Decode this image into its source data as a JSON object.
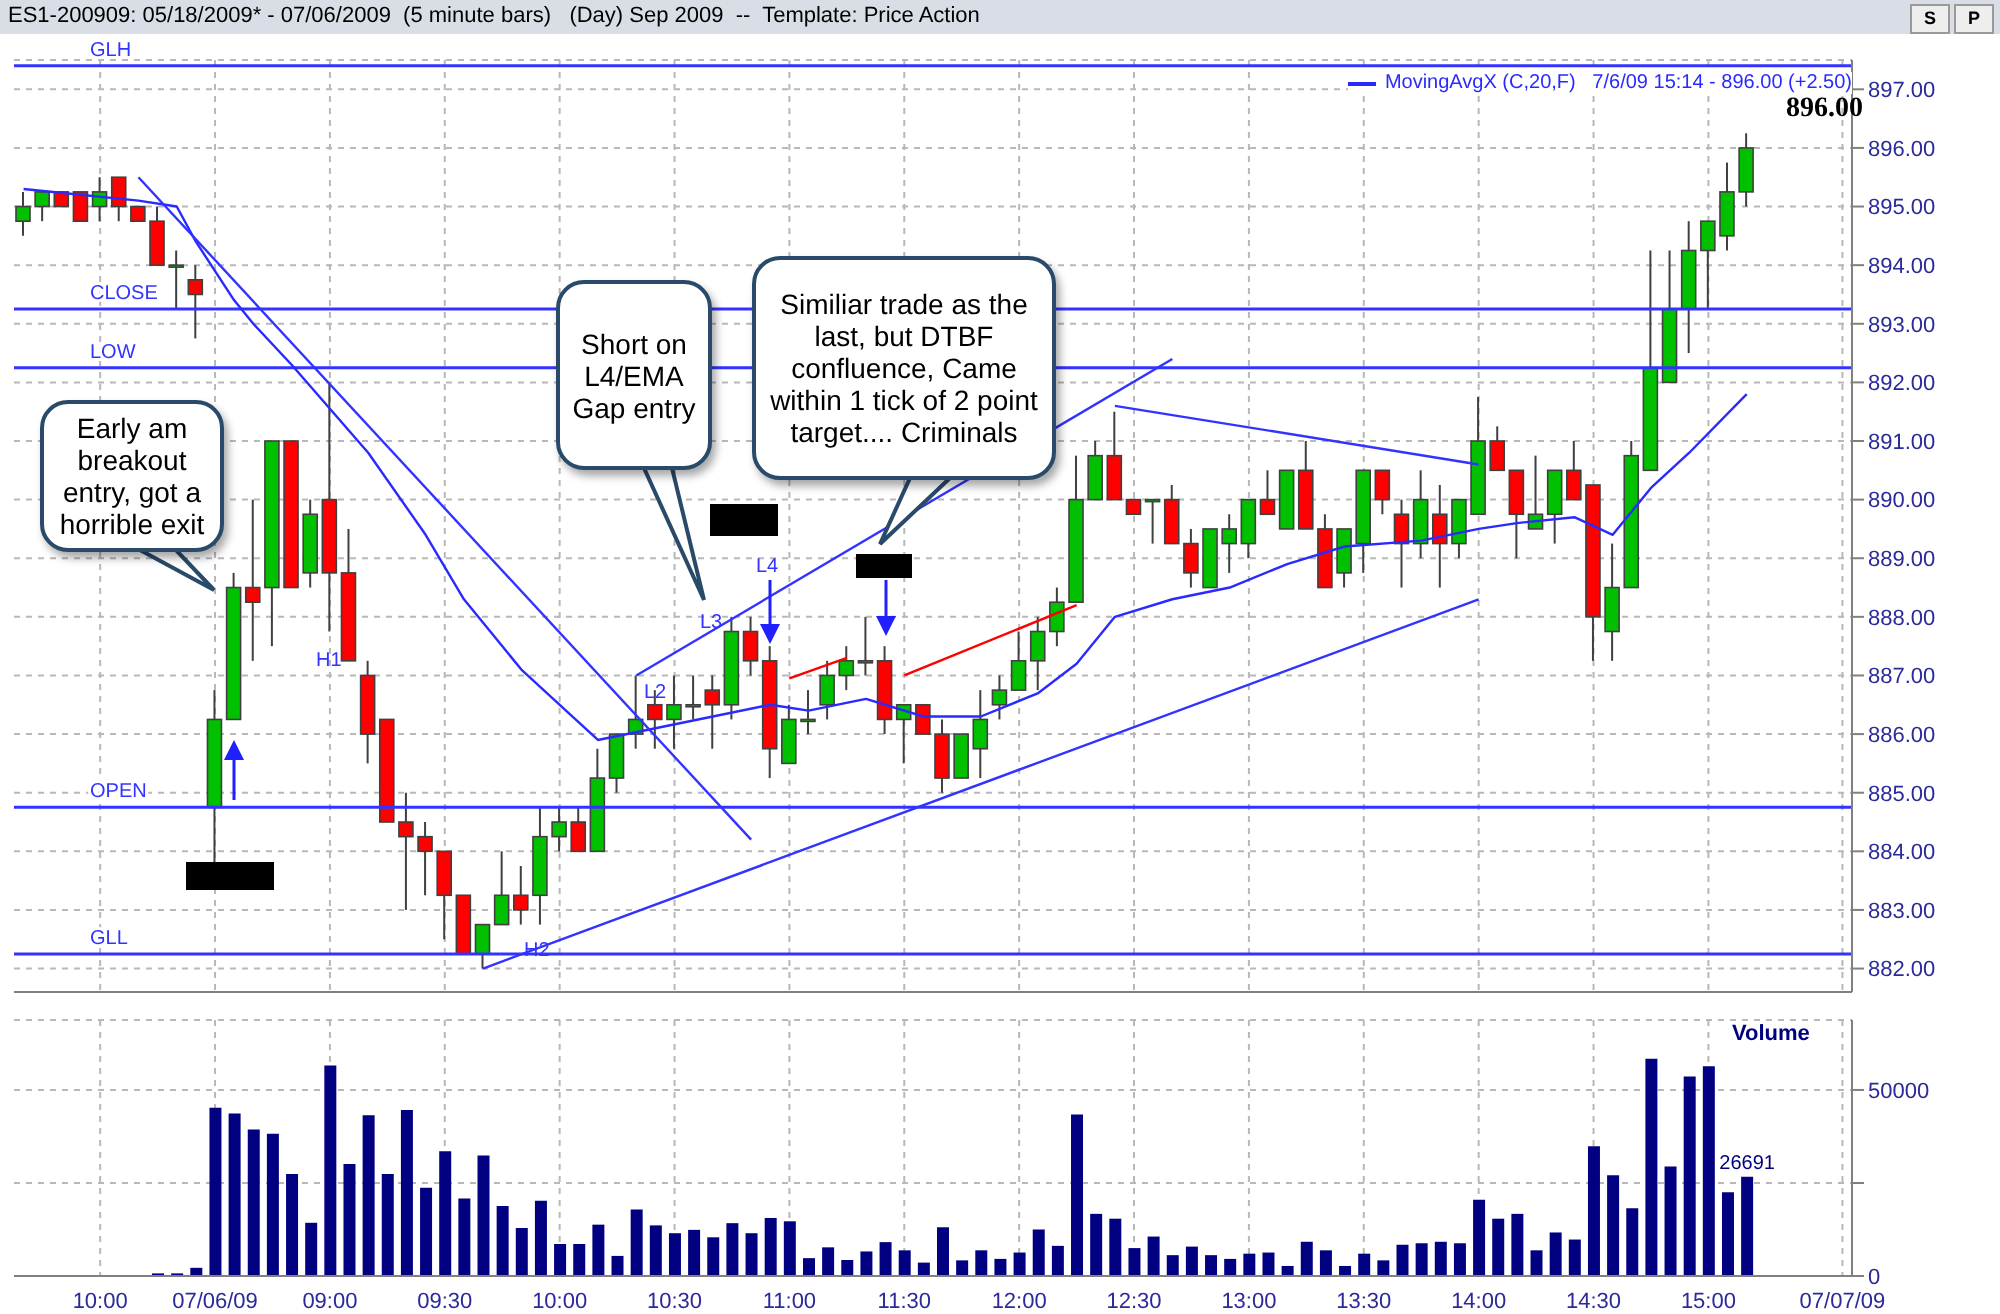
{
  "chart_data": [
    {
      "type": "candlestick",
      "title": "ES1-200909: 05/18/2009* - 07/06/2009  (5 minute bars)   (Day) Sep 2009  --  Template: Price Action",
      "categories": [
        null,
        null,
        null,
        null,
        null,
        null,
        null,
        null,
        null,
        null,
        null,
        null,
        null,
        null,
        null,
        null,
        null,
        null,
        null,
        null,
        null,
        null,
        null,
        null,
        null,
        null,
        null,
        null,
        null,
        null,
        null,
        null,
        null,
        null,
        null,
        null,
        null,
        null,
        null,
        null,
        null,
        null,
        null,
        null,
        null,
        null,
        null,
        null,
        null,
        null,
        null,
        null,
        null,
        null,
        null,
        null,
        null,
        null,
        null,
        null,
        null,
        null,
        null,
        null,
        null,
        null,
        null,
        null,
        null,
        null,
        null,
        null,
        null,
        null,
        null,
        null,
        null,
        null,
        null,
        null,
        null,
        null,
        null,
        null,
        null,
        null,
        null,
        null,
        null,
        null,
        null,
        null,
        null,
        null,
        null,
        null
      ],
      "ohlc": [
        [
          894.75,
          895.25,
          894.5,
          895.0
        ],
        [
          895.0,
          895.25,
          894.75,
          895.25
        ],
        [
          895.25,
          895.25,
          895.0,
          895.0
        ],
        [
          895.25,
          895.25,
          894.75,
          894.75
        ],
        [
          895.0,
          895.5,
          894.75,
          895.25
        ],
        [
          895.5,
          895.5,
          894.75,
          895.0
        ],
        [
          895.0,
          895.0,
          894.75,
          894.75
        ],
        [
          894.75,
          895.0,
          894.0,
          894.0
        ],
        [
          894.0,
          894.25,
          893.25,
          894.0
        ],
        [
          893.75,
          894.0,
          892.75,
          893.5
        ],
        [
          884.75,
          886.75,
          883.75,
          886.25
        ],
        [
          886.25,
          888.75,
          886.25,
          888.5
        ],
        [
          888.5,
          890.0,
          887.25,
          888.25
        ],
        [
          888.5,
          891.0,
          887.5,
          891.0
        ],
        [
          891.0,
          891.0,
          888.5,
          888.5
        ],
        [
          888.75,
          890.0,
          888.5,
          889.75
        ],
        [
          890.0,
          892.0,
          887.75,
          888.75
        ],
        [
          888.75,
          889.5,
          887.25,
          887.25
        ],
        [
          887.0,
          887.25,
          885.5,
          886.0
        ],
        [
          886.25,
          886.25,
          884.5,
          884.5
        ],
        [
          884.5,
          885.0,
          883.0,
          884.25
        ],
        [
          884.25,
          884.5,
          883.25,
          884.0
        ],
        [
          884.0,
          884.0,
          882.5,
          883.25
        ],
        [
          883.25,
          883.25,
          882.25,
          882.25
        ],
        [
          882.25,
          882.75,
          882.0,
          882.75
        ],
        [
          882.75,
          884.0,
          882.75,
          883.25
        ],
        [
          883.25,
          883.75,
          882.75,
          883.0
        ],
        [
          883.25,
          884.75,
          882.75,
          884.25
        ],
        [
          884.25,
          884.75,
          884.0,
          884.5
        ],
        [
          884.5,
          884.75,
          884.0,
          884.0
        ],
        [
          884.0,
          885.75,
          884.0,
          885.25
        ],
        [
          885.25,
          886.0,
          885.0,
          886.0
        ],
        [
          886.0,
          887.0,
          885.75,
          886.25
        ],
        [
          886.5,
          886.75,
          885.75,
          886.25
        ],
        [
          886.25,
          887.0,
          885.75,
          886.5
        ],
        [
          886.5,
          887.0,
          886.25,
          886.5
        ],
        [
          886.75,
          887.0,
          885.75,
          886.5
        ],
        [
          886.5,
          888.0,
          886.25,
          887.75
        ],
        [
          887.75,
          888.0,
          887.0,
          887.25
        ],
        [
          887.25,
          887.5,
          885.25,
          885.75
        ],
        [
          885.5,
          886.5,
          885.5,
          886.25
        ],
        [
          886.25,
          886.75,
          886.0,
          886.25
        ],
        [
          886.5,
          887.25,
          886.25,
          887.0
        ],
        [
          887.0,
          887.5,
          886.75,
          887.25
        ],
        [
          887.25,
          888.0,
          887.0,
          887.25
        ],
        [
          887.25,
          887.5,
          886.0,
          886.25
        ],
        [
          886.25,
          886.5,
          885.5,
          886.5
        ],
        [
          886.5,
          886.5,
          886.0,
          886.0
        ],
        [
          886.0,
          886.25,
          885.0,
          885.25
        ],
        [
          885.25,
          886.0,
          885.25,
          886.0
        ],
        [
          885.75,
          886.75,
          885.25,
          886.25
        ],
        [
          886.5,
          887.0,
          886.25,
          886.75
        ],
        [
          886.75,
          887.75,
          886.75,
          887.25
        ],
        [
          887.25,
          888.0,
          886.75,
          887.75
        ],
        [
          887.75,
          888.5,
          887.5,
          888.25
        ],
        [
          888.25,
          890.75,
          888.25,
          890.0
        ],
        [
          890.0,
          891.0,
          890.0,
          890.75
        ],
        [
          890.75,
          891.5,
          890.0,
          890.0
        ],
        [
          890.0,
          890.0,
          889.75,
          889.75
        ],
        [
          890.0,
          890.0,
          889.25,
          890.0
        ],
        [
          890.0,
          890.25,
          889.25,
          889.25
        ],
        [
          889.25,
          889.5,
          888.5,
          888.75
        ],
        [
          888.5,
          889.5,
          888.5,
          889.5
        ],
        [
          889.25,
          889.75,
          888.75,
          889.5
        ],
        [
          889.25,
          890.0,
          889.0,
          890.0
        ],
        [
          890.0,
          890.5,
          889.75,
          889.75
        ],
        [
          889.5,
          890.5,
          889.5,
          890.5
        ],
        [
          890.5,
          891.0,
          889.5,
          889.5
        ],
        [
          889.5,
          889.75,
          888.5,
          888.5
        ],
        [
          888.75,
          889.5,
          888.5,
          889.5
        ],
        [
          889.25,
          890.5,
          888.75,
          890.5
        ],
        [
          890.5,
          890.5,
          889.75,
          890.0
        ],
        [
          889.75,
          890.0,
          888.5,
          889.25
        ],
        [
          889.25,
          890.5,
          889.0,
          890.0
        ],
        [
          889.75,
          890.25,
          888.5,
          889.25
        ],
        [
          889.25,
          890.0,
          889.0,
          890.0
        ],
        [
          889.75,
          891.75,
          889.75,
          891.0
        ],
        [
          891.0,
          891.25,
          890.5,
          890.5
        ],
        [
          890.5,
          890.5,
          889.0,
          889.75
        ],
        [
          889.5,
          890.75,
          889.5,
          889.75
        ],
        [
          889.75,
          890.5,
          889.25,
          890.5
        ],
        [
          890.5,
          891.0,
          890.0,
          890.0
        ],
        [
          890.25,
          890.25,
          887.25,
          888.0
        ],
        [
          887.75,
          889.25,
          887.25,
          888.5
        ],
        [
          888.5,
          891.0,
          888.5,
          890.75
        ],
        [
          890.5,
          894.25,
          890.5,
          892.25
        ],
        [
          892.0,
          894.25,
          892.0,
          893.25
        ],
        [
          893.25,
          894.75,
          892.5,
          894.25
        ],
        [
          894.25,
          894.75,
          893.25,
          894.75
        ],
        [
          894.5,
          895.75,
          894.25,
          895.25
        ],
        [
          895.25,
          896.25,
          895.0,
          896.0
        ],
        null,
        null,
        null,
        null,
        null
      ],
      "colors": [
        "#00c000",
        "#00c000",
        "#ff0000",
        "#ff0000",
        "#00c000",
        "#ff0000",
        "#ff0000",
        "#ff0000",
        "#00c000",
        "#ff0000",
        "#00c000",
        "#00c000",
        "#ff0000",
        "#00c000",
        "#ff0000",
        "#00c000",
        "#ff0000",
        "#ff0000",
        "#ff0000",
        "#ff0000",
        "#ff0000",
        "#ff0000",
        "#ff0000",
        "#ff0000",
        "#00c000",
        "#00c000",
        "#ff0000",
        "#00c000",
        "#00c000",
        "#ff0000",
        "#00c000",
        "#00c000",
        "#00c000",
        "#ff0000",
        "#00c000",
        "#00c000",
        "#ff0000",
        "#00c000",
        "#ff0000",
        "#ff0000",
        "#00c000",
        "#00c000",
        "#00c000",
        "#00c000",
        "#00c000",
        "#ff0000",
        "#00c000",
        "#ff0000",
        "#ff0000",
        "#00c000",
        "#00c000",
        "#00c000",
        "#00c000",
        "#00c000",
        "#00c000",
        "#00c000",
        "#00c000",
        "#ff0000",
        "#ff0000",
        "#00c000",
        "#ff0000",
        "#ff0000",
        "#00c000",
        "#00c000",
        "#00c000",
        "#ff0000",
        "#00c000",
        "#ff0000",
        "#ff0000",
        "#00c000",
        "#00c000",
        "#ff0000",
        "#ff0000",
        "#00c000",
        "#ff0000",
        "#00c000",
        "#00c000",
        "#ff0000",
        "#ff0000",
        "#00c000",
        "#00c000",
        "#ff0000",
        "#ff0000",
        "#00c000",
        "#00c000",
        "#00c000",
        "#00c000",
        "#00c000",
        "#00c000",
        "#00c000",
        "#00c000",
        null,
        null,
        null,
        null,
        null
      ],
      "series": [
        {
          "type": "line",
          "name": "MovingAvgX (C,20,F)   7/6/09 15:14 - 896.00 (+2.50)",
          "color": "#2a2aff",
          "values": [
            895.3,
            null,
            null,
            null,
            null,
            null,
            895.1,
            null,
            895.0,
            894.4,
            null,
            893.4,
            893.0,
            null,
            892.3,
            null,
            null,
            null,
            890.8,
            null,
            null,
            889.4,
            null,
            888.3,
            null,
            null,
            887.1,
            null,
            null,
            886.2,
            885.9,
            null,
            null,
            886.1,
            null,
            null,
            886.3,
            null,
            null,
            886.5,
            null,
            886.4,
            null,
            null,
            886.6,
            null,
            null,
            886.3,
            null,
            null,
            886.3,
            null,
            null,
            886.7,
            null,
            887.2,
            null,
            888.0,
            null,
            null,
            888.3,
            null,
            null,
            888.5,
            null,
            null,
            888.9,
            null,
            null,
            889.2,
            null,
            null,
            null,
            889.3,
            null,
            null,
            889.5,
            null,
            889.6,
            null,
            null,
            889.7,
            null,
            889.4,
            null,
            890.2,
            null,
            890.8,
            null,
            null,
            891.8,
            null,
            null,
            null,
            null,
            null
          ]
        },
        {
          "type": "line",
          "color": "#3333ff",
          "values": [
            null,
            null,
            null,
            null,
            null,
            null,
            null,
            null,
            null,
            null,
            null,
            null,
            null,
            null,
            null,
            null,
            null,
            null,
            null,
            null,
            null,
            null,
            null,
            null,
            882.0,
            null,
            null,
            null,
            null,
            null,
            null,
            null,
            null,
            null,
            null,
            null,
            null,
            null,
            null,
            null,
            null,
            null,
            null,
            null,
            null,
            null,
            null,
            null,
            null,
            null,
            null,
            null,
            null,
            null,
            null,
            null,
            null,
            null,
            null,
            null,
            null,
            null,
            null,
            null,
            null,
            null,
            null,
            null,
            null,
            null,
            null,
            null,
            null,
            null,
            null,
            null,
            888.3,
            null,
            null,
            null,
            null,
            null,
            null,
            null,
            null,
            null,
            null,
            null,
            null,
            null,
            null,
            null,
            null,
            null,
            null,
            null
          ]
        },
        {
          "type": "line",
          "color": "#3333ff",
          "values": [
            null,
            null,
            null,
            null,
            null,
            null,
            null,
            null,
            null,
            null,
            null,
            null,
            null,
            null,
            null,
            null,
            null,
            null,
            null,
            null,
            null,
            null,
            null,
            null,
            null,
            null,
            null,
            null,
            null,
            null,
            null,
            null,
            887.0,
            null,
            null,
            null,
            null,
            null,
            null,
            null,
            null,
            null,
            null,
            null,
            null,
            null,
            null,
            null,
            null,
            null,
            null,
            null,
            null,
            null,
            null,
            null,
            null,
            null,
            null,
            null,
            892.4,
            null,
            null,
            null,
            null,
            null,
            null,
            null,
            null,
            null,
            null,
            null,
            null,
            null,
            null,
            null,
            null,
            null,
            null,
            null,
            null,
            null,
            null,
            null,
            null,
            null,
            null,
            null,
            null,
            null,
            null,
            null,
            null,
            null,
            null,
            null
          ]
        },
        {
          "type": "line",
          "color": "#3333ff",
          "values": [
            null,
            null,
            null,
            null,
            null,
            null,
            895.5,
            null,
            null,
            null,
            null,
            null,
            null,
            null,
            null,
            null,
            null,
            null,
            null,
            null,
            null,
            null,
            null,
            null,
            null,
            null,
            null,
            null,
            null,
            null,
            null,
            null,
            null,
            null,
            null,
            null,
            null,
            null,
            884.2,
            null,
            null,
            null,
            null,
            null,
            null,
            null,
            null,
            null,
            null,
            null,
            null,
            null,
            null,
            null,
            null,
            null,
            null,
            null,
            null,
            null,
            null,
            null,
            null,
            null,
            null,
            null,
            null,
            null,
            null,
            null,
            null,
            null,
            null,
            null,
            null,
            null,
            null,
            null,
            null,
            null,
            null,
            null,
            null,
            null,
            null,
            null,
            null,
            null,
            null,
            null,
            null,
            null,
            null,
            null,
            null,
            null
          ]
        },
        {
          "type": "line",
          "color": "#3333ff",
          "values": [
            null,
            null,
            null,
            null,
            null,
            null,
            null,
            null,
            null,
            null,
            null,
            null,
            null,
            null,
            null,
            null,
            null,
            null,
            null,
            null,
            null,
            null,
            null,
            null,
            null,
            null,
            null,
            null,
            null,
            null,
            null,
            null,
            null,
            null,
            null,
            null,
            null,
            null,
            null,
            null,
            null,
            null,
            null,
            null,
            null,
            null,
            null,
            null,
            null,
            null,
            null,
            null,
            null,
            null,
            null,
            null,
            null,
            891.6,
            null,
            null,
            null,
            null,
            null,
            null,
            null,
            null,
            null,
            null,
            null,
            null,
            null,
            null,
            null,
            null,
            null,
            null,
            890.6,
            null,
            null,
            null,
            null,
            null,
            null,
            null,
            null,
            null,
            null,
            null,
            null,
            null,
            null,
            null,
            null,
            null,
            null,
            null
          ]
        },
        {
          "type": "line",
          "color": "#ff0000",
          "values": [
            null,
            null,
            null,
            null,
            null,
            null,
            null,
            null,
            null,
            null,
            null,
            null,
            null,
            null,
            null,
            null,
            null,
            null,
            null,
            null,
            null,
            null,
            null,
            null,
            null,
            null,
            null,
            null,
            null,
            null,
            null,
            null,
            null,
            null,
            null,
            null,
            null,
            null,
            null,
            null,
            886.95,
            null,
            null,
            887.3,
            null,
            null,
            null,
            null,
            null,
            null,
            null,
            null,
            null,
            null,
            null,
            null,
            null,
            null,
            null,
            null,
            null,
            null,
            null,
            null,
            null,
            null,
            null,
            null,
            null,
            null,
            null,
            null,
            null,
            null,
            null,
            null,
            null,
            null,
            null,
            null,
            null,
            null,
            null,
            null,
            null,
            null,
            null,
            null,
            null,
            null,
            null,
            null,
            null,
            null,
            null,
            null
          ]
        },
        {
          "type": "line",
          "color": "#ff0000",
          "values": [
            null,
            null,
            null,
            null,
            null,
            null,
            null,
            null,
            null,
            null,
            null,
            null,
            null,
            null,
            null,
            null,
            null,
            null,
            null,
            null,
            null,
            null,
            null,
            null,
            null,
            null,
            null,
            null,
            null,
            null,
            null,
            null,
            null,
            null,
            null,
            null,
            null,
            null,
            null,
            null,
            null,
            null,
            null,
            null,
            null,
            null,
            887.0,
            null,
            null,
            null,
            null,
            null,
            null,
            null,
            null,
            888.2,
            null,
            null,
            null,
            null,
            null,
            null,
            null,
            null,
            null,
            null,
            null,
            null,
            null,
            null,
            null,
            null,
            null,
            null,
            null,
            null,
            null,
            null,
            null,
            null,
            null,
            null,
            null,
            null,
            null,
            null,
            null,
            null,
            null,
            null,
            null,
            null,
            null,
            null,
            null,
            null
          ]
        }
      ],
      "ylim": [
        881.6,
        897.5
      ],
      "yticks": [
        {
          "value": 882,
          "label": "882.00"
        },
        {
          "value": 883,
          "label": "883.00"
        },
        {
          "value": 884,
          "label": "884.00"
        },
        {
          "value": 885,
          "label": "885.00"
        },
        {
          "value": 886,
          "label": "886.00"
        },
        {
          "value": 887,
          "label": "887.00"
        },
        {
          "value": 888,
          "label": "888.00"
        },
        {
          "value": 889,
          "label": "889.00"
        },
        {
          "value": 890,
          "label": "890.00"
        },
        {
          "value": 891,
          "label": "891.00"
        },
        {
          "value": 892,
          "label": "892.00"
        },
        {
          "value": 893,
          "label": "893.00"
        },
        {
          "value": 894,
          "label": "894.00"
        },
        {
          "value": 895,
          "label": "895.00"
        },
        {
          "value": 896,
          "label": "896.00"
        },
        {
          "value": 897,
          "label": "897.00"
        }
      ],
      "grid": true,
      "tick_labels": "y",
      "ref_lines": [
        {
          "axis": "y",
          "value": 897.4,
          "label": "GLH",
          "color": "#3333ff"
        },
        {
          "axis": "y",
          "value": 893.25,
          "label": "CLOSE",
          "color": "#3333ff"
        },
        {
          "axis": "y",
          "value": 892.25,
          "label": "LOW",
          "color": "#3333ff"
        },
        {
          "axis": "y",
          "value": 884.75,
          "label": "OPEN",
          "color": "#3333ff"
        },
        {
          "axis": "y",
          "value": 882.25,
          "label": "GLL",
          "color": "#3333ff"
        }
      ],
      "annotations": [
        "Early am breakout entry, got a horrible exit",
        "Short on L4/EMA Gap entry",
        "Similiar trade as the last, but  DTBF confluence, Came within 1 tick of 2 point target.... Criminals",
        "H1",
        "H2",
        "L2",
        "L3",
        "L4",
        "896.00",
        "S",
        "P"
      ]
    },
    {
      "type": "bar",
      "title": "Volume",
      "categories": [
        null,
        null,
        null,
        null,
        "10:00",
        null,
        null,
        null,
        null,
        null,
        "07/06/09",
        null,
        null,
        null,
        null,
        null,
        "09:00",
        null,
        null,
        null,
        null,
        null,
        "09:30",
        null,
        null,
        null,
        null,
        null,
        "10:00",
        null,
        null,
        null,
        null,
        null,
        "10:30",
        null,
        null,
        null,
        null,
        null,
        "11:00",
        null,
        null,
        null,
        null,
        null,
        "11:30",
        null,
        null,
        null,
        null,
        null,
        "12:00",
        null,
        null,
        null,
        null,
        null,
        "12:30",
        null,
        null,
        null,
        null,
        null,
        "13:00",
        null,
        null,
        null,
        null,
        null,
        "13:30",
        null,
        null,
        null,
        null,
        null,
        "14:00",
        null,
        null,
        null,
        null,
        null,
        "14:30",
        null,
        null,
        null,
        null,
        null,
        "15:00",
        null,
        null,
        null,
        null,
        null,
        null,
        "07/07/09"
      ],
      "values": [
        null,
        null,
        null,
        null,
        null,
        null,
        null,
        700,
        700,
        2200,
        45200,
        43700,
        39400,
        38200,
        27400,
        14300,
        56600,
        30100,
        43200,
        27400,
        44600,
        23700,
        33500,
        20800,
        32400,
        18800,
        12900,
        20200,
        8600,
        8600,
        13800,
        5400,
        17900,
        13600,
        11500,
        12400,
        10400,
        14200,
        11500,
        15600,
        14700,
        4800,
        7700,
        4300,
        6600,
        9100,
        6900,
        3600,
        13100,
        4200,
        6900,
        4600,
        6300,
        12500,
        8100,
        43400,
        16700,
        15400,
        7500,
        10600,
        5600,
        7900,
        5600,
        4600,
        6000,
        6300,
        2700,
        9200,
        6900,
        2700,
        6000,
        4200,
        8400,
        8800,
        9200,
        8800,
        20500,
        15400,
        16700,
        6900,
        11700,
        9800,
        34900,
        27100,
        18200,
        58400,
        29400,
        53600,
        56400,
        22500,
        26691,
        null,
        null,
        null,
        null,
        null
      ],
      "color": "#000080",
      "value_labels": [
        null,
        null,
        null,
        null,
        null,
        null,
        null,
        null,
        null,
        null,
        null,
        null,
        null,
        null,
        null,
        null,
        null,
        null,
        null,
        null,
        null,
        null,
        null,
        null,
        null,
        null,
        null,
        null,
        null,
        null,
        null,
        null,
        null,
        null,
        null,
        null,
        null,
        null,
        null,
        null,
        null,
        null,
        null,
        null,
        null,
        null,
        null,
        null,
        null,
        null,
        null,
        null,
        null,
        null,
        null,
        null,
        null,
        null,
        null,
        null,
        null,
        null,
        null,
        null,
        null,
        null,
        null,
        null,
        null,
        null,
        null,
        null,
        null,
        null,
        null,
        null,
        null,
        null,
        null,
        null,
        null,
        null,
        null,
        null,
        null,
        null,
        null,
        null,
        null,
        null,
        "26691",
        null,
        null,
        null,
        null,
        null
      ],
      "ylim": [
        0,
        68800
      ],
      "yticks": [
        0,
        {
          "value": 25000,
          "label": null
        },
        50000
      ],
      "grid": true
    }
  ]
}
